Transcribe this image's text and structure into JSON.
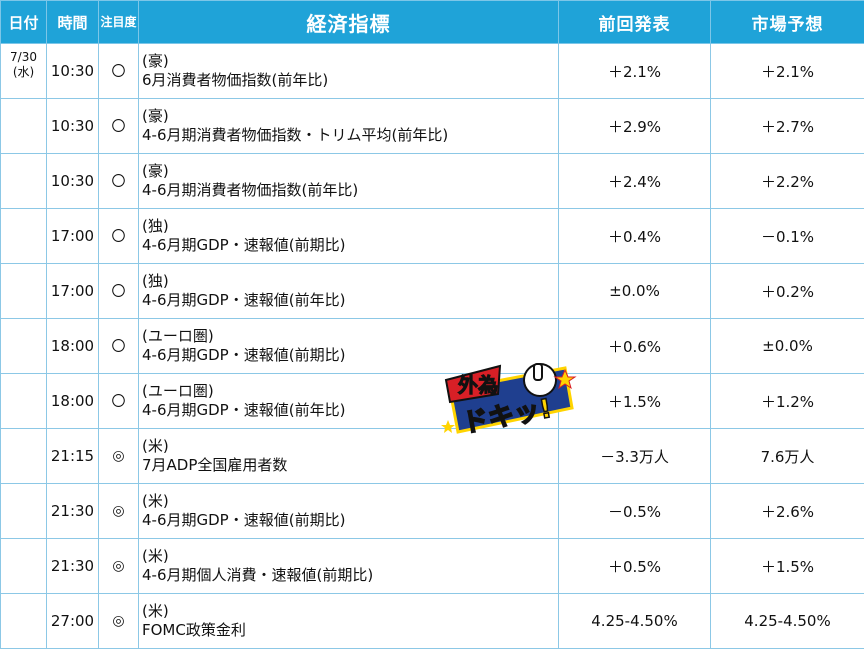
{
  "header": {
    "date": "日付",
    "time": "時間",
    "attention": "注目度",
    "indicator": "経済指標",
    "previous": "前回発表",
    "forecast": "市場予想"
  },
  "rows": [
    {
      "date": "7/30",
      "weekday": "(水)",
      "time": "10:30",
      "mark": "〇",
      "region": "(豪)",
      "name": "6月消費者物価指数(前年比)",
      "previous": "＋2.1%",
      "forecast": "＋2.1%"
    },
    {
      "date": "",
      "weekday": "",
      "time": "10:30",
      "mark": "〇",
      "region": "(豪)",
      "name": "4-6月期消費者物価指数・トリム平均(前年比)",
      "previous": "＋2.9%",
      "forecast": "＋2.7%"
    },
    {
      "date": "",
      "weekday": "",
      "time": "10:30",
      "mark": "〇",
      "region": "(豪)",
      "name": "4-6月期消費者物価指数(前年比)",
      "previous": "＋2.4%",
      "forecast": "＋2.2%"
    },
    {
      "date": "",
      "weekday": "",
      "time": "17:00",
      "mark": "〇",
      "region": "(独)",
      "name": "4-6月期GDP・速報値(前期比)",
      "previous": "＋0.4%",
      "forecast": "－0.1%"
    },
    {
      "date": "",
      "weekday": "",
      "time": "17:00",
      "mark": "〇",
      "region": "(独)",
      "name": "4-6月期GDP・速報値(前年比)",
      "previous": "±0.0%",
      "forecast": "＋0.2%"
    },
    {
      "date": "",
      "weekday": "",
      "time": "18:00",
      "mark": "〇",
      "region": "(ユーロ圏)",
      "name": "4-6月期GDP・速報値(前期比)",
      "previous": "＋0.6%",
      "forecast": "±0.0%"
    },
    {
      "date": "",
      "weekday": "",
      "time": "18:00",
      "mark": "〇",
      "region": "(ユーロ圏)",
      "name": "4-6月期GDP・速報値(前年比)",
      "previous": "＋1.5%",
      "forecast": "＋1.2%"
    },
    {
      "date": "",
      "weekday": "",
      "time": "21:15",
      "mark": "◎",
      "region": "(米)",
      "name": "7月ADP全国雇用者数",
      "previous": "－3.3万人",
      "forecast": "7.6万人"
    },
    {
      "date": "",
      "weekday": "",
      "time": "21:30",
      "mark": "◎",
      "region": "(米)",
      "name": "4-6月期GDP・速報値(前期比)",
      "previous": "－0.5%",
      "forecast": "＋2.6%"
    },
    {
      "date": "",
      "weekday": "",
      "time": "21:30",
      "mark": "◎",
      "region": "(米)",
      "name": "4-6月期個人消費・速報値(前期比)",
      "previous": "＋0.5%",
      "forecast": "＋1.5%"
    },
    {
      "date": "",
      "weekday": "",
      "time": "27:00",
      "mark": "◎",
      "region": "(米)",
      "name": "FOMC政策金利",
      "previous": "4.25-4.50%",
      "forecast": "4.25-4.50%"
    }
  ],
  "logo": {
    "text": "外為ドキッ!",
    "icon": "thumbs-up-icon"
  },
  "colors": {
    "header_bg": "#1fa3d8",
    "border": "#8cc8e6"
  }
}
